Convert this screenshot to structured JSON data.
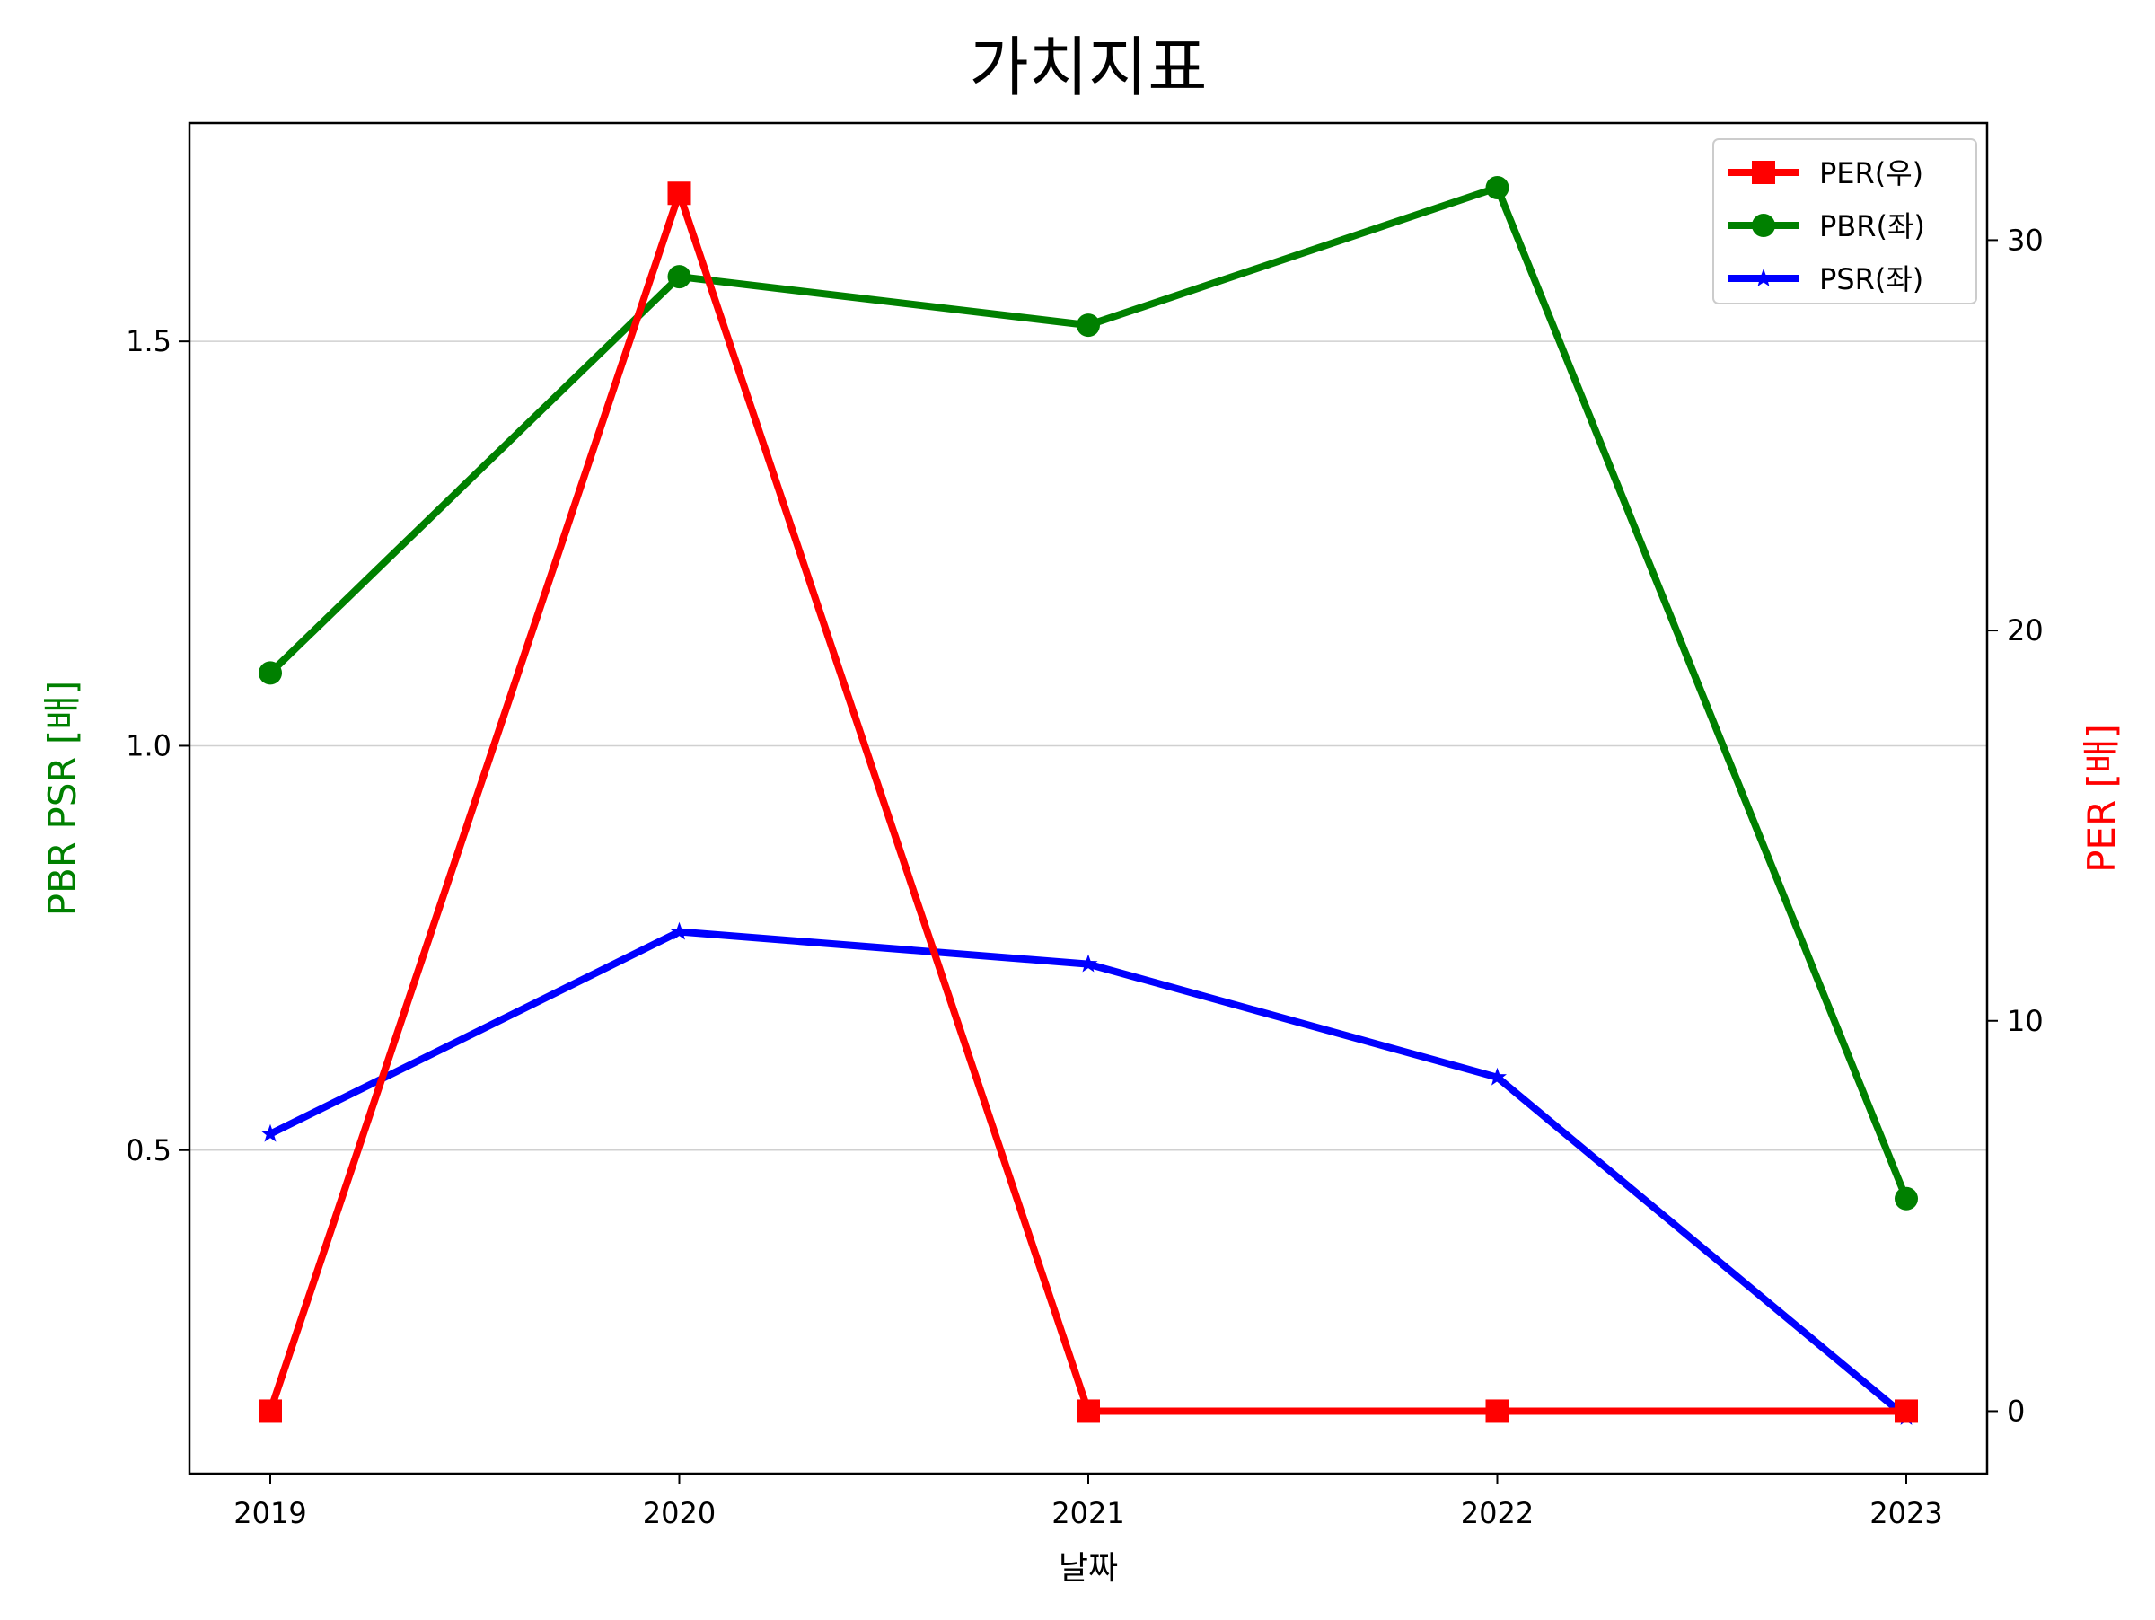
{
  "chart_data": {
    "type": "line",
    "title": "가치지표",
    "xlabel": "날짜",
    "ylabel_left": "PBR PSR [배]",
    "ylabel_right": "PER [배]",
    "ylabel_left_color": "#008000",
    "ylabel_right_color": "#ff0000",
    "categories": [
      "2019",
      "2020",
      "2021",
      "2022",
      "2023"
    ],
    "left_axis": {
      "ylim": [
        0.1,
        1.77
      ],
      "ticks": [
        0.5,
        1.0,
        1.5
      ],
      "tick_labels": [
        "0.5",
        "1.0",
        "1.5"
      ],
      "grid": true
    },
    "right_axis": {
      "ylim": [
        -1.6,
        33.0
      ],
      "ticks": [
        0,
        10,
        20,
        30
      ],
      "tick_labels": [
        "0",
        "10",
        "20",
        "30"
      ]
    },
    "series": [
      {
        "name": "PER(우)",
        "axis": "right",
        "color": "#ff0000",
        "marker": "square",
        "values": [
          0,
          31.2,
          0,
          0,
          0
        ]
      },
      {
        "name": "PBR(좌)",
        "axis": "left",
        "color": "#008000",
        "marker": "circle",
        "values": [
          1.09,
          1.58,
          1.52,
          1.69,
          0.44
        ]
      },
      {
        "name": "PSR(좌)",
        "axis": "left",
        "color": "#0000ff",
        "marker": "star",
        "values": [
          0.52,
          0.77,
          0.73,
          0.59,
          0.17
        ]
      }
    ],
    "legend_position": "top-right"
  }
}
